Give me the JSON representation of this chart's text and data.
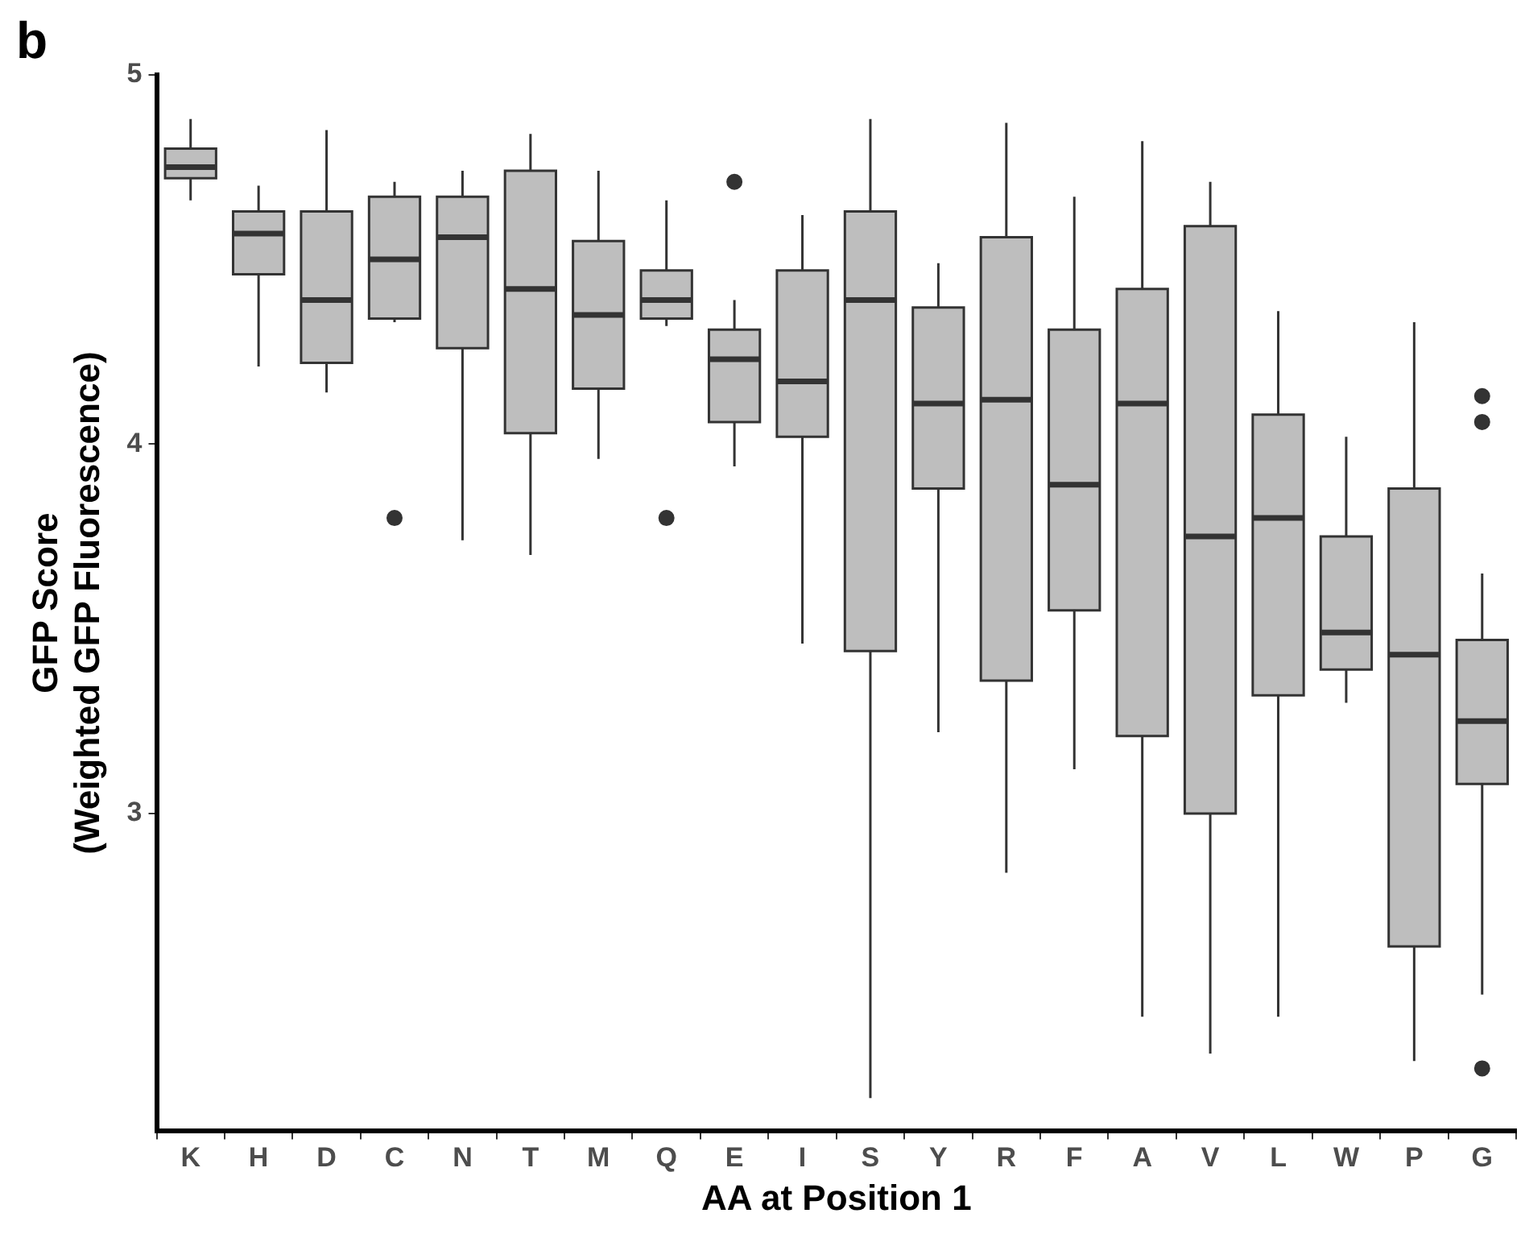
{
  "chart_data": {
    "type": "box",
    "title": "b",
    "xlabel": "AA at Position 1",
    "ylabel": "GFP Score\n(Weighted GFP Fluorescence)",
    "categories": [
      "K",
      "H",
      "D",
      "C",
      "N",
      "T",
      "M",
      "Q",
      "E",
      "I",
      "S",
      "Y",
      "R",
      "F",
      "A",
      "V",
      "L",
      "W",
      "P",
      "G"
    ],
    "color": "#bebebe",
    "ylim": [
      2.14,
      5
    ],
    "yticks": [
      3,
      4,
      5
    ],
    "grid": false,
    "legend": false,
    "boxes": [
      {
        "low": 4.66,
        "q1": 4.72,
        "median": 4.75,
        "q3": 4.8,
        "high": 4.88
      },
      {
        "low": 4.21,
        "q1": 4.46,
        "median": 4.57,
        "q3": 4.63,
        "high": 4.7
      },
      {
        "low": 4.14,
        "q1": 4.22,
        "median": 4.39,
        "q3": 4.63,
        "high": 4.85
      },
      {
        "low": 4.33,
        "q1": 4.34,
        "median": 4.5,
        "q3": 4.67,
        "high": 4.71,
        "outliers": [
          3.8
        ]
      },
      {
        "low": 3.74,
        "q1": 4.26,
        "median": 4.56,
        "q3": 4.67,
        "high": 4.74
      },
      {
        "low": 3.7,
        "q1": 4.03,
        "median": 4.42,
        "q3": 4.74,
        "high": 4.84
      },
      {
        "low": 3.96,
        "q1": 4.15,
        "median": 4.35,
        "q3": 4.55,
        "high": 4.74
      },
      {
        "low": 4.32,
        "q1": 4.34,
        "median": 4.39,
        "q3": 4.47,
        "high": 4.66,
        "outliers": [
          3.8
        ]
      },
      {
        "low": 3.94,
        "q1": 4.06,
        "median": 4.23,
        "q3": 4.31,
        "high": 4.39,
        "outliers": [
          4.71
        ]
      },
      {
        "low": 3.46,
        "q1": 4.02,
        "median": 4.17,
        "q3": 4.47,
        "high": 4.62
      },
      {
        "low": 2.23,
        "q1": 3.44,
        "median": 4.39,
        "q3": 4.63,
        "high": 4.88
      },
      {
        "low": 3.22,
        "q1": 3.88,
        "median": 4.11,
        "q3": 4.37,
        "high": 4.49
      },
      {
        "low": 2.84,
        "q1": 3.36,
        "median": 4.12,
        "q3": 4.56,
        "high": 4.87
      },
      {
        "low": 3.12,
        "q1": 3.55,
        "median": 3.89,
        "q3": 4.31,
        "high": 4.67
      },
      {
        "low": 2.45,
        "q1": 3.21,
        "median": 4.11,
        "q3": 4.42,
        "high": 4.82
      },
      {
        "low": 2.35,
        "q1": 3.0,
        "median": 3.75,
        "q3": 4.59,
        "high": 4.71
      },
      {
        "low": 2.45,
        "q1": 3.32,
        "median": 3.8,
        "q3": 4.08,
        "high": 4.36
      },
      {
        "low": 3.3,
        "q1": 3.39,
        "median": 3.49,
        "q3": 3.75,
        "high": 4.02
      },
      {
        "low": 2.33,
        "q1": 2.64,
        "median": 3.43,
        "q3": 3.88,
        "high": 4.33
      },
      {
        "low": 2.51,
        "q1": 3.08,
        "median": 3.25,
        "q3": 3.47,
        "high": 3.65,
        "outliers": [
          4.13,
          4.06,
          2.31
        ]
      }
    ]
  }
}
